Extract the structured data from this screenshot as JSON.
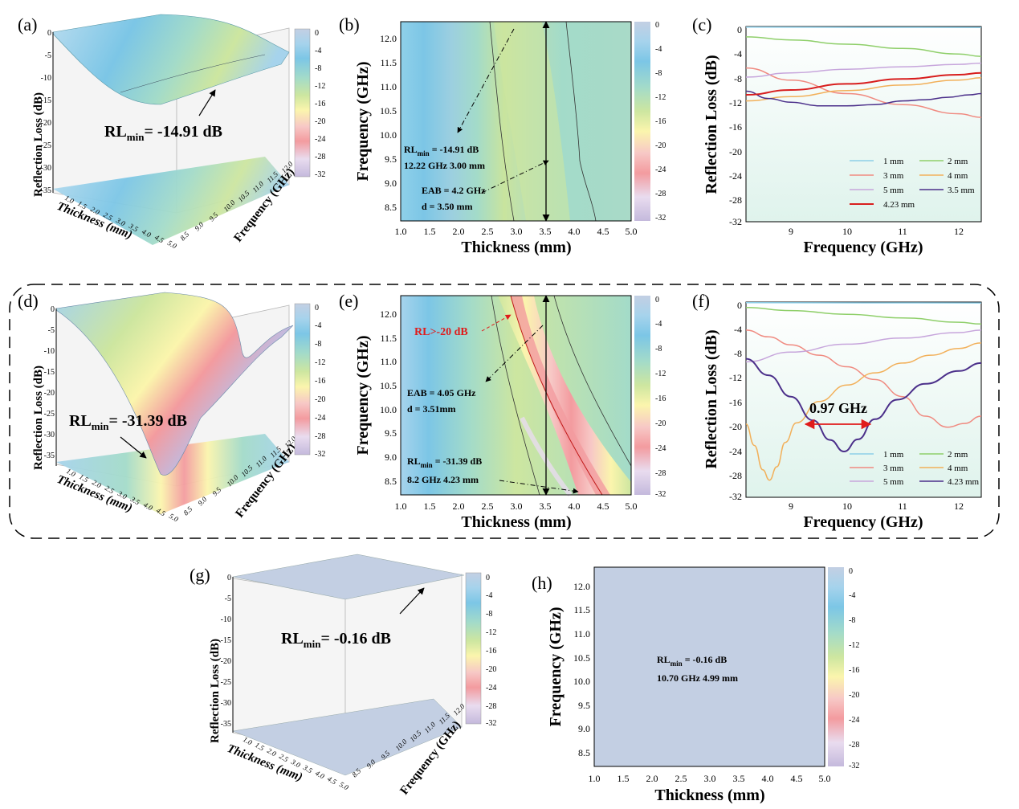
{
  "figure": {
    "panel_letters": [
      "(a)",
      "(b)",
      "(c)",
      "(d)",
      "(e)",
      "(f)",
      "(g)",
      "(h)"
    ],
    "colorbar_ticks": [
      "0",
      "-4",
      "-8",
      "-12",
      "-16",
      "-20",
      "-24",
      "-28",
      "-32"
    ],
    "colors": {
      "c0": "#c3cfe3",
      "c1": "#a6d3ec",
      "c2": "#7cc6e6",
      "c3": "#a3dbc9",
      "c4": "#cde6a0",
      "c5": "#fbf5ad",
      "c6": "#f7c8c6",
      "c7": "#f39b9f",
      "c8": "#e9dcef",
      "c9": "#c4b9dc"
    }
  },
  "panel_a": {
    "zlabel": "Reflection Loss (dB)",
    "z_ticks": [
      "0",
      "-5",
      "-10",
      "-15",
      "-20",
      "-25",
      "-30",
      "-35"
    ],
    "x_ticks": [
      "1.0",
      "1.5",
      "2.0",
      "2.5",
      "3.0",
      "3.5",
      "4.0",
      "4.5",
      "5.0"
    ],
    "y_ticks": [
      "8.5",
      "9.0",
      "9.5",
      "10.0",
      "10.5",
      "11.0",
      "11.5",
      "12.0"
    ],
    "xlabel": "Thickness (mm)",
    "ylabel": "Frequency (GHz)",
    "annotation_pre": "RL",
    "annotation_sub": "min",
    "annotation_post": "= -14.91 dB"
  },
  "panel_b": {
    "xlabel": "Thickness (mm)",
    "ylabel": "Frequency (GHz)",
    "x_ticks": [
      "1.0",
      "1.5",
      "2.0",
      "2.5",
      "3.0",
      "3.5",
      "4.0",
      "4.5",
      "5.0"
    ],
    "y_ticks": [
      "8.5",
      "9.0",
      "9.5",
      "10.0",
      "10.5",
      "11.0",
      "11.5",
      "12.0"
    ],
    "rl_pre": "RL",
    "rl_sub": "min",
    "rl_post": " = -14.91 dB",
    "rl_line2": "12.22 GHz 3.00 mm",
    "eab_line1": "EAB = 4.2 GHz",
    "eab_line2": "d = 3.50 mm"
  },
  "panel_c": {
    "xlabel": "Frequency (GHz)",
    "ylabel": "Reflection Loss (dB)",
    "x_ticks": [
      "9",
      "10",
      "11",
      "12"
    ],
    "y_ticks": [
      "0",
      "-4",
      "-8",
      "-12",
      "-16",
      "-20",
      "-24",
      "-28",
      "-32"
    ],
    "legend": [
      "1 mm",
      "2 mm",
      "3 mm",
      "4 mm",
      "5 mm",
      "3.5 mm",
      "4.23 mm"
    ]
  },
  "panel_d": {
    "zlabel": "Reflection Loss (dB)",
    "z_ticks": [
      "0",
      "-5",
      "-10",
      "-15",
      "-20",
      "-25",
      "-30",
      "-35"
    ],
    "x_ticks": [
      "1.0",
      "1.5",
      "2.0",
      "2.5",
      "3.0",
      "3.5",
      "4.0",
      "4.5",
      "5.0"
    ],
    "y_ticks": [
      "8.5",
      "9.0",
      "9.5",
      "10.0",
      "10.5",
      "11.0",
      "11.5",
      "12.0"
    ],
    "xlabel": "Thickness (mm)",
    "ylabel": "Frequency (GHz)",
    "annotation_pre": "RL",
    "annotation_sub": "min",
    "annotation_post": "= -31.39 dB"
  },
  "panel_e": {
    "xlabel": "Thickness (mm)",
    "ylabel": "Frequency (GHz)",
    "x_ticks": [
      "1.0",
      "1.5",
      "2.0",
      "2.5",
      "3.0",
      "3.5",
      "4.0",
      "4.5",
      "5.0"
    ],
    "y_ticks": [
      "8.5",
      "9.0",
      "9.5",
      "10.0",
      "10.5",
      "11.0",
      "11.5",
      "12.0"
    ],
    "rl_label": "RL>-20 dB",
    "eab_line1": "EAB = 4.05 GHz",
    "eab_line2": "d = 3.51mm",
    "rl_pre": "RL",
    "rl_sub": "min",
    "rl_post": " = -31.39 dB",
    "rl_line2": "8.2 GHz 4.23 mm"
  },
  "panel_f": {
    "xlabel": "Frequency (GHz)",
    "ylabel": "Reflection Loss (dB)",
    "x_ticks": [
      "9",
      "10",
      "11",
      "12"
    ],
    "y_ticks": [
      "0",
      "-4",
      "-8",
      "-12",
      "-16",
      "-20",
      "-24",
      "-28",
      "-32"
    ],
    "legend": [
      "1 mm",
      "2 mm",
      "3 mm",
      "4 mm",
      "5 mm",
      "4.23 mm"
    ],
    "bandwidth_label": "0.97 GHz"
  },
  "panel_g": {
    "zlabel": "Reflection Loss (dB)",
    "z_ticks": [
      "0",
      "-5",
      "-10",
      "-15",
      "-20",
      "-25",
      "-30",
      "-35"
    ],
    "x_ticks": [
      "1.0",
      "1.5",
      "2.0",
      "2.5",
      "3.0",
      "3.5",
      "4.0",
      "4.5",
      "5.0"
    ],
    "y_ticks": [
      "8.5",
      "9.0",
      "9.5",
      "10.0",
      "10.5",
      "11.0",
      "11.5",
      "12.0"
    ],
    "xlabel": "Thickness (mm)",
    "ylabel": "Frequency (GHz)",
    "annotation_pre": "RL",
    "annotation_sub": "min",
    "annotation_post": "= -0.16 dB"
  },
  "panel_h": {
    "xlabel": "Thickness (mm)",
    "ylabel": "Frequency (GHz)",
    "x_ticks": [
      "1.0",
      "1.5",
      "2.0",
      "2.5",
      "3.0",
      "3.5",
      "4.0",
      "4.5",
      "5.0"
    ],
    "y_ticks": [
      "8.5",
      "9.0",
      "9.5",
      "10.0",
      "10.5",
      "11.0",
      "11.5",
      "12.0"
    ],
    "rl_pre": "RL",
    "rl_sub": "min",
    "rl_post": " = -0.16 dB",
    "rl_line2": "10.70 GHz 4.99 mm"
  },
  "chart_data": [
    {
      "panel": "c",
      "type": "line",
      "xlabel": "Frequency (GHz)",
      "ylabel": "Reflection Loss (dB)",
      "xlim": [
        8.2,
        12.4
      ],
      "ylim": [
        -32,
        0
      ],
      "series": [
        {
          "name": "1 mm",
          "color": "#8ecfe8",
          "x": [
            8.2,
            12.4
          ],
          "y": [
            -0.1,
            -0.15
          ]
        },
        {
          "name": "2 mm",
          "color": "#8fcf6a",
          "x": [
            8.2,
            9,
            10,
            11,
            12,
            12.4
          ],
          "y": [
            -1.7,
            -2.2,
            -2.9,
            -3.6,
            -4.5,
            -4.9
          ]
        },
        {
          "name": "3 mm",
          "color": "#f08a80",
          "x": [
            8.2,
            9,
            10,
            11,
            12,
            12.4
          ],
          "y": [
            -6.8,
            -8.8,
            -11.0,
            -12.8,
            -14.3,
            -14.9
          ]
        },
        {
          "name": "4 mm",
          "color": "#f2b05a",
          "x": [
            8.2,
            9,
            10,
            11,
            12,
            12.4
          ],
          "y": [
            -12.2,
            -11.5,
            -10.5,
            -9.6,
            -8.8,
            -8.4
          ]
        },
        {
          "name": "5 mm",
          "color": "#c7a6dc",
          "x": [
            8.2,
            9,
            10,
            11,
            12,
            12.4
          ],
          "y": [
            -8.3,
            -7.6,
            -7.0,
            -6.6,
            -6.2,
            -6.0
          ]
        },
        {
          "name": "3.5 mm",
          "color": "#4b2f8a",
          "x": [
            8.2,
            8.6,
            9.0,
            9.5,
            10.0,
            10.5,
            11.0,
            11.4,
            11.8,
            12.2,
            12.4
          ],
          "y": [
            -10.6,
            -11.8,
            -12.4,
            -13.0,
            -13.0,
            -12.8,
            -12.2,
            -12.0,
            -11.6,
            -11.2,
            -11.0
          ]
        },
        {
          "name": "4.23 mm",
          "color": "#d81e1e",
          "x": [
            8.2,
            9,
            10,
            11,
            12,
            12.4
          ],
          "y": [
            -11.2,
            -10.4,
            -9.4,
            -8.6,
            -7.9,
            -7.6
          ]
        }
      ]
    },
    {
      "panel": "f",
      "type": "line",
      "xlabel": "Frequency (GHz)",
      "ylabel": "Reflection Loss (dB)",
      "xlim": [
        8.2,
        12.4
      ],
      "ylim": [
        -32,
        0
      ],
      "series": [
        {
          "name": "1 mm",
          "color": "#8ecfe8",
          "x": [
            8.2,
            12.4
          ],
          "y": [
            -0.1,
            -0.15
          ]
        },
        {
          "name": "2 mm",
          "color": "#8fcf6a",
          "x": [
            8.2,
            9,
            10,
            11,
            12,
            12.4
          ],
          "y": [
            -0.9,
            -1.4,
            -2.0,
            -2.6,
            -3.3,
            -3.6
          ]
        },
        {
          "name": "3 mm",
          "color": "#f08a80",
          "x": [
            8.2,
            8.6,
            9.0,
            9.5,
            10.0,
            10.5,
            11.0,
            11.4,
            11.8,
            12.1,
            12.4
          ],
          "y": [
            -4.6,
            -5.7,
            -7.0,
            -8.7,
            -10.6,
            -12.7,
            -15.5,
            -18.7,
            -20.5,
            -19.9,
            -18.7
          ]
        },
        {
          "name": "4 mm",
          "color": "#f2b05a",
          "x": [
            8.2,
            8.35,
            8.5,
            8.62,
            8.75,
            8.9,
            9.1,
            9.5,
            10.0,
            10.5,
            11.0,
            11.5,
            12.0,
            12.4
          ],
          "y": [
            -20.0,
            -23.5,
            -27.5,
            -29.2,
            -27.0,
            -23.0,
            -19.8,
            -16.3,
            -13.6,
            -11.6,
            -10.0,
            -8.7,
            -7.6,
            -6.7
          ]
        },
        {
          "name": "5 mm",
          "color": "#c7a6dc",
          "x": [
            8.2,
            9,
            10,
            11,
            12,
            12.4
          ],
          "y": [
            -9.8,
            -8.2,
            -6.9,
            -5.9,
            -5.0,
            -4.6
          ]
        },
        {
          "name": "4.23 mm",
          "color": "#4b2f8a",
          "x": [
            8.2,
            8.6,
            9.0,
            9.4,
            9.7,
            9.95,
            10.2,
            10.5,
            10.9,
            11.4,
            12.0,
            12.4
          ],
          "y": [
            -9.3,
            -12.0,
            -15.5,
            -19.4,
            -22.6,
            -24.5,
            -22.5,
            -19.2,
            -16.0,
            -13.4,
            -11.3,
            -10.0
          ]
        }
      ],
      "annotation": {
        "text": "0.97 GHz",
        "x_range": [
          9.45,
          10.5
        ],
        "y": -20
      }
    },
    {
      "panel": "b",
      "type": "heatmap",
      "xlabel": "Thickness (mm)",
      "ylabel": "Frequency (GHz)",
      "xlim": [
        1.0,
        5.0
      ],
      "ylim": [
        8.2,
        12.4
      ],
      "zlim": [
        -32,
        0
      ],
      "min_point": {
        "thickness": 3.0,
        "frequency": 12.22,
        "rl": -14.91
      },
      "eab": {
        "value_ghz": 4.2,
        "thickness": 3.5
      }
    },
    {
      "panel": "e",
      "type": "heatmap",
      "xlabel": "Thickness (mm)",
      "ylabel": "Frequency (GHz)",
      "xlim": [
        1.0,
        5.0
      ],
      "ylim": [
        8.2,
        12.4
      ],
      "zlim": [
        -32,
        0
      ],
      "min_point": {
        "thickness": 4.23,
        "frequency": 8.2,
        "rl": -31.39
      },
      "eab": {
        "value_ghz": 4.05,
        "thickness": 3.51
      }
    },
    {
      "panel": "h",
      "type": "heatmap",
      "xlabel": "Thickness (mm)",
      "ylabel": "Frequency (GHz)",
      "xlim": [
        1.0,
        5.0
      ],
      "ylim": [
        8.2,
        12.4
      ],
      "zlim": [
        -32,
        0
      ],
      "min_point": {
        "thickness": 4.99,
        "frequency": 10.7,
        "rl": -0.16
      }
    }
  ]
}
